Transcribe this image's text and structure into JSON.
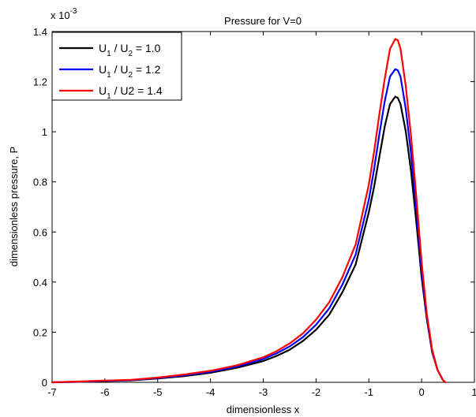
{
  "chart_data": {
    "type": "line",
    "title": "Pressure for V=0",
    "xlabel": "dimensionless x",
    "ylabel": "dimensionless pressure, P",
    "y_multiplier_base": "x 10",
    "y_multiplier_exp": "-3",
    "xlim": [
      -7,
      1
    ],
    "ylim": [
      0,
      1.4
    ],
    "xticks": [
      "-7",
      "-6",
      "-5",
      "-4",
      "-3",
      "-2",
      "-1",
      "0",
      "1"
    ],
    "yticks": [
      "0",
      "0.2",
      "0.4",
      "0.6",
      "0.8",
      "1",
      "1.2",
      "1.4"
    ],
    "grid": false,
    "legend_position": "top-left",
    "series": [
      {
        "name_main1": "U",
        "name_sub1": "1",
        "name_mid": " / U",
        "name_sub2": "2",
        "name_tail": " = 1.0",
        "color": "#000000",
        "x": [
          -7,
          -6.5,
          -6,
          -5.5,
          -5,
          -4.5,
          -4,
          -3.5,
          -3,
          -2.75,
          -2.5,
          -2.25,
          -2,
          -1.75,
          -1.5,
          -1.25,
          -1,
          -0.9,
          -0.8,
          -0.7,
          -0.6,
          -0.5,
          -0.45,
          -0.4,
          -0.3,
          -0.2,
          -0.1,
          0,
          0.1,
          0.2,
          0.3,
          0.4,
          0.45
        ],
        "y": [
          0,
          0.002,
          0.005,
          0.008,
          0.015,
          0.025,
          0.038,
          0.058,
          0.085,
          0.105,
          0.13,
          0.165,
          0.21,
          0.27,
          0.36,
          0.47,
          0.68,
          0.78,
          0.9,
          1.02,
          1.11,
          1.14,
          1.135,
          1.11,
          1.0,
          0.84,
          0.64,
          0.42,
          0.25,
          0.12,
          0.05,
          0.01,
          0.0
        ]
      },
      {
        "name_main1": "U",
        "name_sub1": "1",
        "name_mid": " / U",
        "name_sub2": "2",
        "name_tail": " = 1.2",
        "color": "#0000ff",
        "x": [
          -7,
          -6.5,
          -6,
          -5.5,
          -5,
          -4.5,
          -4,
          -3.5,
          -3,
          -2.75,
          -2.5,
          -2.25,
          -2,
          -1.75,
          -1.5,
          -1.25,
          -1,
          -0.9,
          -0.8,
          -0.7,
          -0.6,
          -0.5,
          -0.45,
          -0.4,
          -0.3,
          -0.2,
          -0.1,
          0,
          0.1,
          0.2,
          0.3,
          0.4,
          0.45
        ],
        "y": [
          0,
          0.002,
          0.006,
          0.009,
          0.017,
          0.028,
          0.042,
          0.063,
          0.093,
          0.115,
          0.143,
          0.18,
          0.23,
          0.295,
          0.39,
          0.51,
          0.73,
          0.85,
          0.99,
          1.12,
          1.22,
          1.25,
          1.245,
          1.22,
          1.09,
          0.91,
          0.69,
          0.45,
          0.26,
          0.125,
          0.05,
          0.01,
          0.0
        ]
      },
      {
        "name_main1": "U",
        "name_sub1": "1",
        "name_mid": " / U2",
        "name_sub2": "",
        "name_tail": " = 1.4",
        "color": "#ff0000",
        "x": [
          -7,
          -6.5,
          -6,
          -5.5,
          -5,
          -4.5,
          -4,
          -3.5,
          -3,
          -2.75,
          -2.5,
          -2.25,
          -2,
          -1.75,
          -1.5,
          -1.25,
          -1,
          -0.9,
          -0.8,
          -0.7,
          -0.6,
          -0.5,
          -0.45,
          -0.4,
          -0.3,
          -0.2,
          -0.1,
          0,
          0.1,
          0.2,
          0.3,
          0.4,
          0.45
        ],
        "y": [
          0,
          0.003,
          0.007,
          0.01,
          0.019,
          0.031,
          0.046,
          0.068,
          0.1,
          0.124,
          0.155,
          0.195,
          0.25,
          0.32,
          0.42,
          0.55,
          0.79,
          0.92,
          1.07,
          1.21,
          1.33,
          1.37,
          1.365,
          1.33,
          1.18,
          0.98,
          0.74,
          0.48,
          0.27,
          0.13,
          0.05,
          0.01,
          0.0
        ]
      }
    ]
  }
}
